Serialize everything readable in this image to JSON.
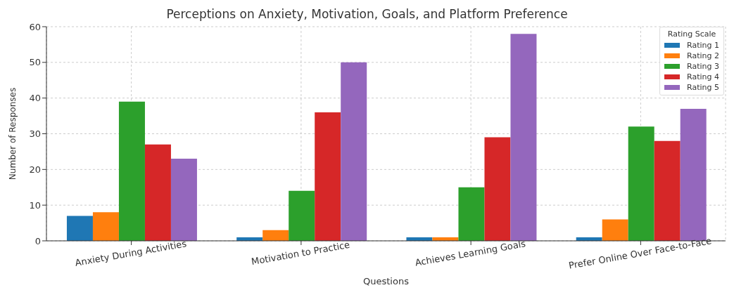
{
  "chart_data": {
    "type": "bar",
    "title": "Perceptions on Anxiety, Motivation, Goals, and Platform Preference",
    "xlabel": "Questions",
    "ylabel": "Number of Responses",
    "legend_title": "Rating Scale",
    "categories": [
      "Anxiety During Activities",
      "Motivation to Practice",
      "Achieves Learning Goals",
      "Prefer Online Over Face-to-Face"
    ],
    "series": [
      {
        "name": "Rating 1",
        "color": "#1f77b4",
        "values": [
          7,
          1,
          1,
          1
        ]
      },
      {
        "name": "Rating 2",
        "color": "#ff7f0e",
        "values": [
          8,
          3,
          1,
          6
        ]
      },
      {
        "name": "Rating 3",
        "color": "#2ca02c",
        "values": [
          39,
          14,
          15,
          32
        ]
      },
      {
        "name": "Rating 4",
        "color": "#d62728",
        "values": [
          27,
          36,
          29,
          28
        ]
      },
      {
        "name": "Rating 5",
        "color": "#9467bd",
        "values": [
          23,
          50,
          58,
          37
        ]
      }
    ],
    "ylim": [
      0,
      60
    ],
    "yticks": [
      0,
      10,
      20,
      30,
      40,
      50,
      60
    ],
    "grid": true,
    "legend": "top right"
  }
}
